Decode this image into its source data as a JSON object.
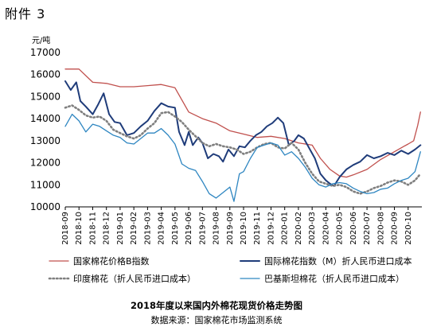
{
  "header": {
    "attachment_label": "附件 3",
    "unit": "元/吨"
  },
  "caption": {
    "title": "2018年度以来国内外棉花现货价格走势图",
    "source": "数据来源：国家棉花市场监测系统"
  },
  "chart_data": {
    "type": "line",
    "title": "2018年度以来国内外棉花现货价格走势图",
    "ylabel": "元/吨",
    "ylim": [
      10000,
      17000
    ],
    "yticks": [
      10000,
      11000,
      12000,
      13000,
      14000,
      15000,
      16000,
      17000
    ],
    "ytick_labels": [
      "10000",
      "11000",
      "12000",
      "13000",
      "14000",
      "15000",
      "16000",
      "17000"
    ],
    "xlim": [
      0,
      26
    ],
    "x": [
      0,
      1,
      2,
      3,
      4,
      5,
      6,
      7,
      8,
      9,
      10,
      11,
      12,
      13,
      14,
      15,
      16,
      17,
      18,
      19,
      20,
      21,
      22,
      23,
      24,
      25
    ],
    "categories": [
      "2018-09",
      "2018-10",
      "2018-11",
      "2018-12",
      "2019-01",
      "2019-02",
      "2019-03",
      "2019-04",
      "2019-05",
      "2019-06",
      "2019-07",
      "2019-08",
      "2019-09",
      "2019-10",
      "2019-11",
      "2019-12",
      "2020-01",
      "2020-02",
      "2020-03",
      "2020-04",
      "2020-05",
      "2020-06",
      "2020-07",
      "2020-08",
      "2020-09",
      "2020-10"
    ],
    "grid": false,
    "legend_position": "bottom",
    "series": [
      {
        "name": "国家棉花价格B指数",
        "color": "#c0504d",
        "width": 1.3,
        "points": [
          [
            0,
            16250
          ],
          [
            1,
            16250
          ],
          [
            2,
            15650
          ],
          [
            3,
            15600
          ],
          [
            4,
            15450
          ],
          [
            5,
            15450
          ],
          [
            6,
            15500
          ],
          [
            7,
            15550
          ],
          [
            8,
            15400
          ],
          [
            9,
            14300
          ],
          [
            10,
            14000
          ],
          [
            11,
            13800
          ],
          [
            12,
            13450
          ],
          [
            13,
            13300
          ],
          [
            14,
            13150
          ],
          [
            15,
            13200
          ],
          [
            16,
            13100
          ],
          [
            17,
            12900
          ],
          [
            18,
            12800
          ],
          [
            18.6,
            12200
          ],
          [
            19.3,
            11700
          ],
          [
            20,
            11400
          ],
          [
            20.5,
            11350
          ],
          [
            21,
            11450
          ],
          [
            22,
            11700
          ],
          [
            23,
            12150
          ],
          [
            24,
            12500
          ],
          [
            24.7,
            12750
          ],
          [
            25,
            12850
          ],
          [
            25.4,
            13000
          ],
          [
            25.7,
            13700
          ],
          [
            25.9,
            14300
          ]
        ]
      },
      {
        "name": "国际棉花指数（M）折人民币进口成本",
        "color": "#1f3c7a",
        "width": 2,
        "points": [
          [
            0,
            15700
          ],
          [
            0.4,
            15300
          ],
          [
            0.8,
            15650
          ],
          [
            1.1,
            14800
          ],
          [
            1.5,
            14550
          ],
          [
            2,
            14200
          ],
          [
            2.4,
            14650
          ],
          [
            2.8,
            15150
          ],
          [
            3.2,
            14200
          ],
          [
            3.6,
            13850
          ],
          [
            4,
            13800
          ],
          [
            4.5,
            13250
          ],
          [
            5,
            13350
          ],
          [
            5.5,
            13650
          ],
          [
            6,
            13900
          ],
          [
            6.5,
            14350
          ],
          [
            7,
            14700
          ],
          [
            7.5,
            14550
          ],
          [
            8,
            14500
          ],
          [
            8.3,
            13400
          ],
          [
            8.7,
            12800
          ],
          [
            9,
            13400
          ],
          [
            9.3,
            12800
          ],
          [
            9.7,
            13150
          ],
          [
            10,
            12900
          ],
          [
            10.4,
            12200
          ],
          [
            10.8,
            12400
          ],
          [
            11.2,
            12300
          ],
          [
            11.5,
            12050
          ],
          [
            11.9,
            12600
          ],
          [
            12.3,
            12300
          ],
          [
            12.7,
            12750
          ],
          [
            13.1,
            12700
          ],
          [
            13.5,
            13000
          ],
          [
            13.9,
            13250
          ],
          [
            14.3,
            13400
          ],
          [
            14.7,
            13650
          ],
          [
            15.1,
            13800
          ],
          [
            15.5,
            14050
          ],
          [
            15.9,
            13800
          ],
          [
            16.3,
            12800
          ],
          [
            16.7,
            13000
          ],
          [
            17,
            13250
          ],
          [
            17.4,
            13100
          ],
          [
            17.8,
            12650
          ],
          [
            18.2,
            12200
          ],
          [
            18.6,
            11500
          ],
          [
            19,
            11200
          ],
          [
            19.3,
            11050
          ],
          [
            19.6,
            10950
          ],
          [
            20,
            11350
          ],
          [
            20.5,
            11700
          ],
          [
            21,
            11900
          ],
          [
            21.5,
            12050
          ],
          [
            22,
            12350
          ],
          [
            22.5,
            12200
          ],
          [
            23,
            12300
          ],
          [
            23.5,
            12450
          ],
          [
            24,
            12350
          ],
          [
            24.5,
            12550
          ],
          [
            25,
            12400
          ],
          [
            25.5,
            12600
          ],
          [
            25.9,
            12800
          ]
        ]
      },
      {
        "name": "印度棉花（折人民币进口成本）",
        "color": "#7f7f7f",
        "width": 2.6,
        "dash": "1.5,3",
        "points": [
          [
            0,
            14500
          ],
          [
            0.5,
            14600
          ],
          [
            1,
            14400
          ],
          [
            1.5,
            14150
          ],
          [
            2,
            14050
          ],
          [
            2.5,
            14100
          ],
          [
            3,
            13900
          ],
          [
            3.5,
            13500
          ],
          [
            4,
            13350
          ],
          [
            4.5,
            13200
          ],
          [
            5,
            13100
          ],
          [
            5.5,
            13250
          ],
          [
            6,
            13550
          ],
          [
            6.5,
            13800
          ],
          [
            7,
            14250
          ],
          [
            7.5,
            14300
          ],
          [
            8,
            14100
          ],
          [
            8.5,
            13850
          ],
          [
            9,
            13500
          ],
          [
            9.5,
            13200
          ],
          [
            10,
            12900
          ],
          [
            10.5,
            12750
          ],
          [
            11,
            12850
          ],
          [
            11.5,
            12750
          ],
          [
            12,
            12700
          ],
          [
            12.5,
            12600
          ],
          [
            13,
            12400
          ],
          [
            13.5,
            12500
          ],
          [
            14,
            12700
          ],
          [
            14.5,
            12850
          ],
          [
            15,
            12900
          ],
          [
            15.5,
            12700
          ],
          [
            16,
            12650
          ],
          [
            16.5,
            12900
          ],
          [
            17,
            12600
          ],
          [
            17.5,
            12000
          ],
          [
            18,
            11500
          ],
          [
            18.5,
            11150
          ],
          [
            19,
            11050
          ],
          [
            19.5,
            10950
          ],
          [
            20,
            11000
          ],
          [
            20.5,
            10900
          ],
          [
            21,
            10700
          ],
          [
            21.5,
            10600
          ],
          [
            22,
            10700
          ],
          [
            22.5,
            10850
          ],
          [
            23,
            10950
          ],
          [
            23.5,
            11100
          ],
          [
            24,
            11200
          ],
          [
            24.5,
            11150
          ],
          [
            25,
            11000
          ],
          [
            25.5,
            11200
          ],
          [
            25.9,
            11500
          ]
        ]
      },
      {
        "name": "巴基斯坦棉花（折人民币进口成本）",
        "color": "#2e86c1",
        "width": 1.3,
        "points": [
          [
            0,
            13650
          ],
          [
            0.5,
            14200
          ],
          [
            1,
            13900
          ],
          [
            1.5,
            13400
          ],
          [
            2,
            13750
          ],
          [
            2.5,
            13650
          ],
          [
            3,
            13450
          ],
          [
            3.5,
            13250
          ],
          [
            4,
            13150
          ],
          [
            4.5,
            12900
          ],
          [
            5,
            12850
          ],
          [
            5.5,
            13100
          ],
          [
            6,
            13350
          ],
          [
            6.5,
            13350
          ],
          [
            7,
            13550
          ],
          [
            7.5,
            13250
          ],
          [
            8,
            12850
          ],
          [
            8.5,
            11950
          ],
          [
            9,
            11750
          ],
          [
            9.5,
            11650
          ],
          [
            10,
            11150
          ],
          [
            10.5,
            10600
          ],
          [
            11,
            10400
          ],
          [
            11.5,
            10650
          ],
          [
            12,
            10900
          ],
          [
            12.3,
            10250
          ],
          [
            12.7,
            11500
          ],
          [
            13,
            11600
          ],
          [
            13.5,
            12200
          ],
          [
            14,
            12700
          ],
          [
            14.5,
            12800
          ],
          [
            15,
            12900
          ],
          [
            15.5,
            12800
          ],
          [
            16,
            12350
          ],
          [
            16.5,
            12500
          ],
          [
            17,
            12200
          ],
          [
            17.5,
            11800
          ],
          [
            18,
            11300
          ],
          [
            18.5,
            11000
          ],
          [
            19,
            10900
          ],
          [
            19.5,
            11050
          ],
          [
            20,
            11100
          ],
          [
            20.5,
            11050
          ],
          [
            21,
            10850
          ],
          [
            21.5,
            10700
          ],
          [
            22,
            10600
          ],
          [
            22.5,
            10650
          ],
          [
            23,
            10800
          ],
          [
            23.5,
            10850
          ],
          [
            24,
            11050
          ],
          [
            24.5,
            11200
          ],
          [
            25,
            11300
          ],
          [
            25.5,
            11600
          ],
          [
            25.9,
            12500
          ]
        ]
      }
    ]
  }
}
